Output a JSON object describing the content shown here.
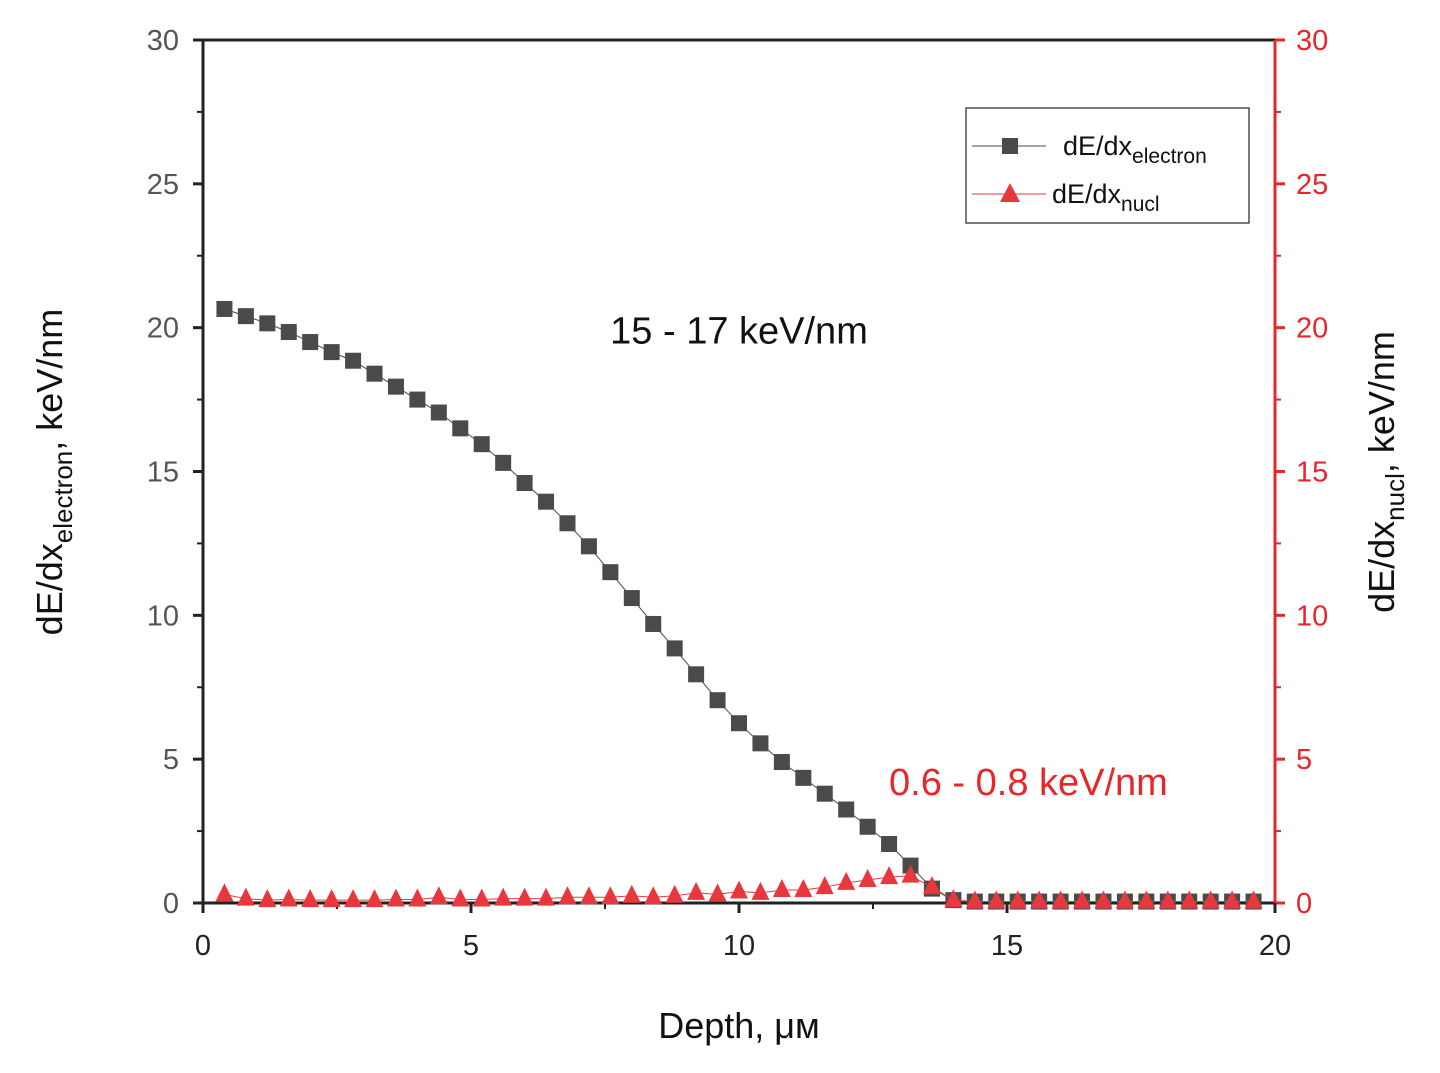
{
  "chart_data": {
    "type": "scatter",
    "x_axis": {
      "label": "Depth, μм",
      "range": [
        0,
        20
      ],
      "ticks": [
        0,
        5,
        10,
        15,
        20
      ]
    },
    "y_axis_left": {
      "label_base": "dE/dx",
      "label_sub": "electron",
      "label_tail": ", keV/nm",
      "range": [
        0,
        30
      ],
      "ticks": [
        0,
        5,
        10,
        15,
        20,
        25,
        30
      ],
      "color": "#555555"
    },
    "y_axis_right": {
      "label_base": "dE/dx",
      "label_sub": "nucl",
      "label_tail": ", keV/nm",
      "range": [
        0,
        30
      ],
      "ticks": [
        0,
        5,
        10,
        15,
        20,
        25,
        30
      ],
      "color": "#e8262a"
    },
    "series": [
      {
        "name_base": "dE/dx",
        "name_sub": "electron",
        "axis": "left",
        "marker": "square",
        "color": "#4a4a4a",
        "x": [
          0.4,
          0.8,
          1.2,
          1.6,
          2.0,
          2.4,
          2.8,
          3.2,
          3.6,
          4.0,
          4.4,
          4.8,
          5.2,
          5.6,
          6.0,
          6.4,
          6.8,
          7.2,
          7.6,
          8.0,
          8.4,
          8.8,
          9.2,
          9.6,
          10.0,
          10.4,
          10.8,
          11.2,
          11.6,
          12.0,
          12.4,
          12.8,
          13.2,
          13.6,
          14.0,
          14.4,
          14.8,
          15.2,
          15.6,
          16.0,
          16.4,
          16.8,
          17.2,
          17.6,
          18.0,
          18.4,
          18.8,
          19.2,
          19.6
        ],
        "y": [
          20.65,
          20.4,
          20.15,
          19.85,
          19.5,
          19.15,
          18.85,
          18.4,
          17.95,
          17.5,
          17.05,
          16.5,
          15.95,
          15.3,
          14.6,
          13.95,
          13.2,
          12.4,
          11.5,
          10.6,
          9.7,
          8.85,
          7.95,
          7.05,
          6.25,
          5.55,
          4.9,
          4.35,
          3.8,
          3.25,
          2.65,
          2.05,
          1.3,
          0.5,
          0.1,
          0.05,
          0.05,
          0.05,
          0.05,
          0.05,
          0.05,
          0.05,
          0.05,
          0.05,
          0.05,
          0.05,
          0.05,
          0.05,
          0.05
        ]
      },
      {
        "name_base": "dE/dx",
        "name_sub": "nucl",
        "axis": "right",
        "marker": "triangle",
        "color": "#e8383d",
        "x": [
          0.4,
          0.8,
          1.2,
          1.6,
          2.0,
          2.4,
          2.8,
          3.2,
          3.6,
          4.0,
          4.4,
          4.8,
          5.2,
          5.6,
          6.0,
          6.4,
          6.8,
          7.2,
          7.6,
          8.0,
          8.4,
          8.8,
          9.2,
          9.6,
          10.0,
          10.4,
          10.8,
          11.2,
          11.6,
          12.0,
          12.4,
          12.8,
          13.2,
          13.6,
          14.0,
          14.4,
          14.8,
          15.2,
          15.6,
          16.0,
          16.4,
          16.8,
          17.2,
          17.6,
          18.0,
          18.4,
          18.8,
          19.2,
          19.6
        ],
        "y": [
          0.3,
          0.15,
          0.1,
          0.12,
          0.1,
          0.1,
          0.1,
          0.1,
          0.12,
          0.12,
          0.2,
          0.12,
          0.12,
          0.15,
          0.15,
          0.15,
          0.2,
          0.2,
          0.2,
          0.25,
          0.2,
          0.25,
          0.35,
          0.3,
          0.4,
          0.35,
          0.45,
          0.45,
          0.55,
          0.7,
          0.8,
          0.9,
          0.95,
          0.55,
          0.1,
          0.05,
          0.05,
          0.05,
          0.05,
          0.05,
          0.05,
          0.05,
          0.05,
          0.05,
          0.05,
          0.05,
          0.05,
          0.05,
          0.05
        ]
      }
    ],
    "annotations": [
      {
        "text": "15 - 17 keV/nm",
        "color": "#111111",
        "x": 10.0,
        "y": 19.9
      },
      {
        "text": "0.6 - 0.8 keV/nm",
        "color": "#e8262a",
        "x": 15.4,
        "y": 4.2
      }
    ],
    "legend_position": "top-right",
    "grid": false
  }
}
